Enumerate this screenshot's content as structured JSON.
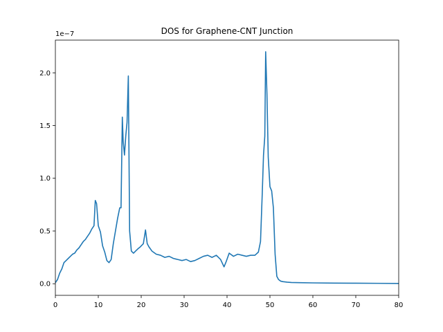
{
  "chart_data": {
    "type": "line",
    "title": "DOS for Graphene-CNT Junction",
    "xlabel": "",
    "ylabel": "",
    "y_offset_label": "1e−7",
    "xlim": [
      0,
      80
    ],
    "ylim": [
      -0.11,
      2.31
    ],
    "x_ticks": [
      0,
      10,
      20,
      30,
      40,
      50,
      60,
      70,
      80
    ],
    "x_tick_labels": [
      "0",
      "10",
      "20",
      "30",
      "40",
      "50",
      "60",
      "70",
      "80"
    ],
    "y_ticks": [
      0.0,
      0.5,
      1.0,
      1.5,
      2.0
    ],
    "y_tick_labels": [
      "0.0",
      "0.5",
      "1.0",
      "1.5",
      "2.0"
    ],
    "grid": false,
    "line_color": "#1f77b4",
    "series": [
      {
        "x": [
          0,
          0.5,
          1,
          1.5,
          2,
          2.5,
          3,
          3.5,
          4,
          4.5,
          5,
          5.5,
          6,
          6.5,
          7,
          7.5,
          8,
          8.5,
          9,
          9.3,
          9.6,
          10,
          10.5,
          11,
          11.5,
          12,
          12.5,
          13,
          13.5,
          14,
          14.5,
          15,
          15.3,
          15.6,
          15.8,
          16.1,
          16.4,
          16.7,
          17.0,
          17.3,
          17.7,
          18.2,
          18.7,
          19.2,
          19.8,
          20.5,
          21.0,
          21.4,
          21.8,
          22.5,
          23.5,
          24.5,
          25.5,
          26.5,
          27.5,
          28.5,
          29.5,
          30.5,
          31.5,
          32.5,
          33.5,
          34.5,
          35.5,
          36.5,
          37.5,
          38.5,
          39.3,
          39.8,
          40.5,
          41.5,
          42.5,
          43.5,
          44.5,
          45.5,
          46.5,
          47.3,
          47.8,
          48.2,
          48.5,
          48.8,
          49.0,
          49.3,
          49.6,
          50.0,
          50.4,
          50.8,
          51.2,
          51.6,
          52.0,
          52.5,
          53,
          54,
          55,
          57,
          60,
          65,
          70,
          75,
          80
        ],
        "values": [
          0.01,
          0.04,
          0.1,
          0.14,
          0.2,
          0.22,
          0.24,
          0.26,
          0.28,
          0.29,
          0.32,
          0.34,
          0.37,
          0.4,
          0.42,
          0.45,
          0.48,
          0.52,
          0.55,
          0.79,
          0.76,
          0.55,
          0.49,
          0.36,
          0.3,
          0.22,
          0.2,
          0.23,
          0.38,
          0.5,
          0.62,
          0.72,
          0.72,
          1.58,
          1.35,
          1.22,
          1.4,
          1.53,
          1.97,
          0.5,
          0.31,
          0.29,
          0.31,
          0.33,
          0.35,
          0.38,
          0.51,
          0.38,
          0.35,
          0.31,
          0.28,
          0.27,
          0.25,
          0.26,
          0.24,
          0.23,
          0.22,
          0.23,
          0.21,
          0.22,
          0.24,
          0.26,
          0.27,
          0.25,
          0.27,
          0.23,
          0.16,
          0.21,
          0.29,
          0.26,
          0.28,
          0.27,
          0.26,
          0.27,
          0.27,
          0.3,
          0.4,
          0.85,
          1.22,
          1.4,
          2.2,
          1.8,
          1.2,
          0.92,
          0.88,
          0.72,
          0.28,
          0.07,
          0.04,
          0.025,
          0.02,
          0.015,
          0.012,
          0.01,
          0.008,
          0.006,
          0.005,
          0.004,
          0.003
        ]
      }
    ]
  }
}
